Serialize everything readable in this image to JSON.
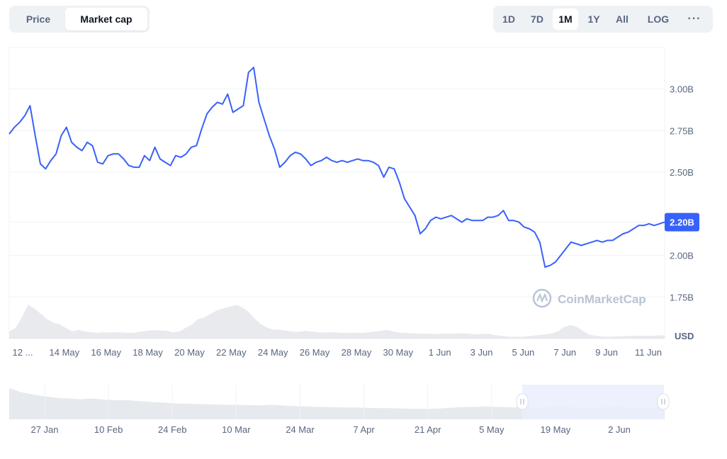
{
  "toggle": {
    "price_label": "Price",
    "market_cap_label": "Market cap"
  },
  "ranges": {
    "d1": "1D",
    "d7": "7D",
    "m1": "1M",
    "y1": "1Y",
    "all": "All",
    "log": "LOG",
    "more": "···"
  },
  "watermark": "CoinMarketCap",
  "colors": {
    "line": "#3861fb",
    "grid": "#eff2f5",
    "badge": "#3861fb",
    "volume": "#e0e3e8",
    "selection": "#e9eefd"
  },
  "chart_data": {
    "type": "line",
    "x_tick_labels": [
      "12 ...",
      "14 May",
      "16 May",
      "18 May",
      "20 May",
      "22 May",
      "24 May",
      "26 May",
      "28 May",
      "30 May",
      "1 Jun",
      "3 Jun",
      "5 Jun",
      "7 Jun",
      "9 Jun",
      "11 Jun"
    ],
    "y_tick_labels": [
      "3.00B",
      "2.75B",
      "2.50B",
      "2.00B",
      "1.75B"
    ],
    "y_ticks": [
      3.0,
      2.75,
      2.5,
      2.0,
      1.75
    ],
    "y_unit_label": "USD",
    "ylim": [
      1.5,
      3.25
    ],
    "current_value": 2.2,
    "current_label": "2.20B",
    "series": [
      {
        "values": [
          2.73,
          2.77,
          2.8,
          2.84,
          2.9,
          2.72,
          2.55,
          2.52,
          2.57,
          2.61,
          2.72,
          2.77,
          2.68,
          2.65,
          2.63,
          2.68,
          2.66,
          2.56,
          2.55,
          2.6,
          2.61,
          2.61,
          2.58,
          2.54,
          2.53,
          2.53,
          2.6,
          2.57,
          2.65,
          2.58,
          2.56,
          2.54,
          2.6,
          2.59,
          2.61,
          2.65,
          2.66,
          2.76,
          2.85,
          2.89,
          2.92,
          2.91,
          2.97,
          2.86,
          2.88,
          2.9,
          3.1,
          3.13,
          2.92,
          2.82,
          2.72,
          2.64,
          2.53,
          2.56,
          2.6,
          2.62,
          2.61,
          2.58,
          2.54,
          2.56,
          2.57,
          2.59,
          2.57,
          2.56,
          2.57,
          2.56,
          2.57,
          2.58,
          2.57,
          2.57,
          2.56,
          2.54,
          2.47,
          2.53,
          2.52,
          2.44,
          2.34,
          2.29,
          2.24,
          2.13,
          2.16,
          2.21,
          2.23,
          2.22,
          2.23,
          2.24,
          2.22,
          2.2,
          2.22,
          2.21,
          2.21,
          2.21,
          2.23,
          2.23,
          2.24,
          2.27,
          2.21,
          2.21,
          2.2,
          2.17,
          2.16,
          2.14,
          2.08,
          1.93,
          1.94,
          1.96,
          2.0,
          2.04,
          2.08,
          2.07,
          2.06,
          2.07,
          2.08,
          2.09,
          2.08,
          2.09,
          2.09,
          2.11,
          2.13,
          2.14,
          2.16,
          2.18,
          2.18,
          2.19,
          2.18,
          2.19,
          2.2
        ]
      }
    ],
    "volume_values": [
      0.2,
      0.3,
      0.6,
      0.95,
      0.85,
      0.7,
      0.55,
      0.45,
      0.4,
      0.3,
      0.2,
      0.25,
      0.2,
      0.18,
      0.16,
      0.18,
      0.17,
      0.18,
      0.17,
      0.16,
      0.17,
      0.2,
      0.22,
      0.24,
      0.23,
      0.22,
      0.18,
      0.2,
      0.3,
      0.4,
      0.55,
      0.6,
      0.7,
      0.8,
      0.85,
      0.9,
      0.95,
      0.88,
      0.75,
      0.55,
      0.4,
      0.3,
      0.25,
      0.25,
      0.22,
      0.2,
      0.19,
      0.22,
      0.2,
      0.18,
      0.17,
      0.18,
      0.17,
      0.16,
      0.16,
      0.17,
      0.16,
      0.18,
      0.2,
      0.22,
      0.24,
      0.2,
      0.17,
      0.16,
      0.15,
      0.14,
      0.14,
      0.13,
      0.13,
      0.14,
      0.14,
      0.14,
      0.15,
      0.14,
      0.12,
      0.13,
      0.14,
      0.1,
      0.08,
      0.06,
      0.05,
      0.05,
      0.06,
      0.08,
      0.1,
      0.12,
      0.14,
      0.2,
      0.32,
      0.38,
      0.34,
      0.22,
      0.12,
      0.08,
      0.06,
      0.05,
      0.06,
      0.07,
      0.07,
      0.08,
      0.08,
      0.08,
      0.08,
      0.09,
      0.09
    ],
    "navigator": {
      "x_tick_labels": [
        "27 Jan",
        "10 Feb",
        "24 Feb",
        "10 Mar",
        "24 Mar",
        "7 Apr",
        "21 Apr",
        "5 May",
        "19 May",
        "2 Jun"
      ],
      "values": [
        0.9,
        0.78,
        0.72,
        0.66,
        0.62,
        0.6,
        0.58,
        0.6,
        0.57,
        0.55,
        0.55,
        0.52,
        0.5,
        0.48,
        0.46,
        0.45,
        0.44,
        0.43,
        0.42,
        0.42,
        0.41,
        0.4,
        0.42,
        0.4,
        0.38,
        0.37,
        0.36,
        0.35,
        0.34,
        0.34,
        0.33,
        0.32,
        0.32,
        0.31,
        0.3,
        0.3,
        0.31,
        0.33,
        0.35,
        0.36,
        0.37,
        0.36,
        0.35,
        0.34,
        0.35,
        0.36,
        0.38,
        0.36,
        0.35,
        0.35,
        0.36,
        0.37,
        0.35,
        0.34,
        0.35,
        0.35
      ]
    }
  }
}
